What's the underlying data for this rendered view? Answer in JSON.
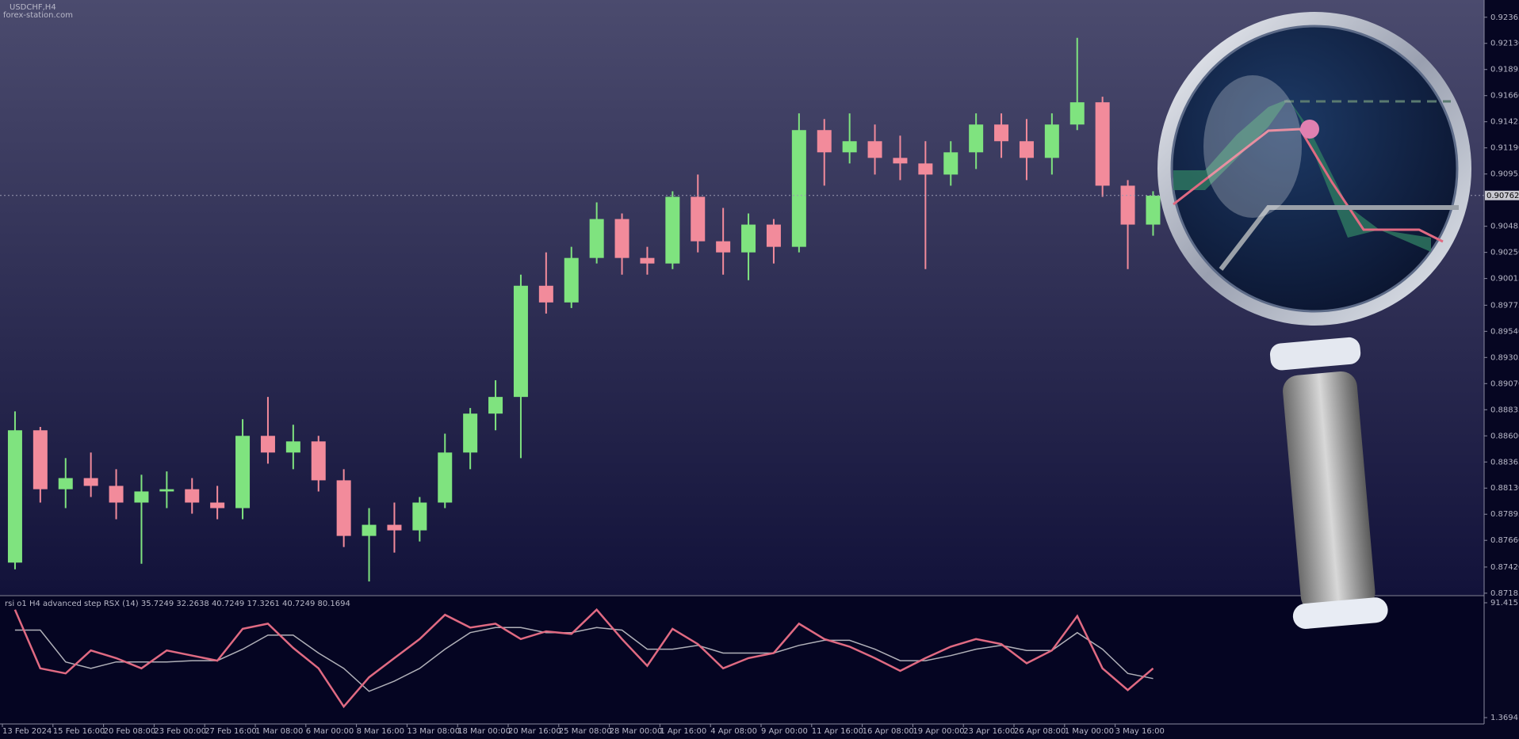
{
  "chart_data": [
    {
      "type": "candlestick",
      "title": "USDCHF,H4",
      "subtitle": "forex-station.com",
      "categories": [
        "13 Feb 2024",
        null,
        "15 Feb 16:00",
        null,
        "20 Feb 08:00",
        null,
        "23 Feb 00:00",
        null,
        "27 Feb 16:00",
        null,
        "1 Mar 08:00",
        null,
        "6 Mar 00:00",
        null,
        "8 Mar 16:00",
        null,
        "13 Mar 08:00",
        null,
        "18 Mar 00:00",
        null,
        "20 Mar 16:00",
        null,
        "25 Mar 08:00",
        null,
        "28 Mar 00:00",
        null,
        "1 Apr 16:00",
        null,
        "4 Apr 08:00",
        null,
        "9 Apr 00:00",
        null,
        "11 Apr 16:00",
        null,
        "16 Apr 08:00",
        null,
        "19 Apr 00:00",
        null,
        "23 Apr 16:00",
        null,
        "26 Apr 08:00",
        null,
        "1 May 00:00",
        null,
        "3 May 16:00",
        null
      ],
      "open": [
        0.8746,
        0.8865,
        0.8812,
        0.8822,
        0.8815,
        0.88,
        0.881,
        0.8812,
        0.88,
        0.8795,
        0.886,
        0.8845,
        0.8855,
        0.882,
        0.877,
        0.878,
        0.8775,
        0.88,
        0.8845,
        0.888,
        0.8895,
        0.8995,
        0.898,
        0.902,
        0.9055,
        0.902,
        0.9015,
        0.9075,
        0.9035,
        0.9025,
        0.905,
        0.903,
        0.9135,
        0.9115,
        0.9125,
        0.911,
        0.9105,
        0.9095,
        0.9115,
        0.914,
        0.9125,
        0.911,
        0.914,
        0.916,
        0.9085,
        0.905
      ],
      "high": [
        0.8882,
        0.8868,
        0.884,
        0.8845,
        0.883,
        0.8825,
        0.8828,
        0.8822,
        0.8815,
        0.8875,
        0.8895,
        0.887,
        0.886,
        0.883,
        0.8795,
        0.88,
        0.8805,
        0.8862,
        0.8885,
        0.891,
        0.9005,
        0.9025,
        0.903,
        0.907,
        0.906,
        0.903,
        0.908,
        0.9095,
        0.9065,
        0.906,
        0.9055,
        0.915,
        0.9145,
        0.915,
        0.914,
        0.913,
        0.9125,
        0.9125,
        0.915,
        0.915,
        0.9145,
        0.915,
        0.9218,
        0.9165,
        0.909,
        0.908
      ],
      "low": [
        0.874,
        0.88,
        0.8795,
        0.8805,
        0.8785,
        0.8745,
        0.8795,
        0.879,
        0.8785,
        0.8785,
        0.8835,
        0.883,
        0.881,
        0.876,
        0.8729,
        0.8755,
        0.8765,
        0.8795,
        0.883,
        0.8865,
        0.884,
        0.897,
        0.8975,
        0.9015,
        0.9005,
        0.9005,
        0.901,
        0.9025,
        0.9005,
        0.9,
        0.9015,
        0.9025,
        0.9085,
        0.9105,
        0.9095,
        0.909,
        0.901,
        0.9085,
        0.91,
        0.911,
        0.909,
        0.9095,
        0.9135,
        0.9075,
        0.901,
        0.904
      ],
      "close": [
        0.8865,
        0.8812,
        0.8822,
        0.8815,
        0.88,
        0.881,
        0.8812,
        0.88,
        0.8795,
        0.886,
        0.8845,
        0.8855,
        0.882,
        0.877,
        0.878,
        0.8775,
        0.88,
        0.8845,
        0.888,
        0.8895,
        0.8995,
        0.898,
        0.902,
        0.9055,
        0.902,
        0.9015,
        0.9075,
        0.9035,
        0.9025,
        0.905,
        0.903,
        0.9135,
        0.9115,
        0.9125,
        0.911,
        0.9105,
        0.9095,
        0.9115,
        0.914,
        0.9125,
        0.911,
        0.914,
        0.916,
        0.9085,
        0.905,
        0.9076
      ],
      "up_color": "#7fe37f",
      "down_color": "#f28b9b",
      "current_price": 0.90762,
      "ylim": [
        0.8717,
        0.9252
      ],
      "yticks": [
        {
          "value": 0.92365,
          "label": "0.92365"
        },
        {
          "value": 0.9213,
          "label": "0.92130"
        },
        {
          "value": 0.91895,
          "label": "0.91895"
        },
        {
          "value": 0.9166,
          "label": "0.91660"
        },
        {
          "value": 0.91425,
          "label": "0.91425"
        },
        {
          "value": 0.9119,
          "label": "0.91190"
        },
        {
          "value": 0.90955,
          "label": "0.90955"
        },
        {
          "value": 0.90485,
          "label": "0.90485"
        },
        {
          "value": 0.9025,
          "label": "0.90250"
        },
        {
          "value": 0.90015,
          "label": "0.90015"
        },
        {
          "value": 0.89775,
          "label": "0.89775"
        },
        {
          "value": 0.8954,
          "label": "0.89540"
        },
        {
          "value": 0.89305,
          "label": "0.89305"
        },
        {
          "value": 0.8907,
          "label": "0.89070"
        },
        {
          "value": 0.88835,
          "label": "0.88835"
        },
        {
          "value": 0.886,
          "label": "0.88600"
        },
        {
          "value": 0.88365,
          "label": "0.88365"
        },
        {
          "value": 0.8813,
          "label": "0.88130"
        },
        {
          "value": 0.87895,
          "label": "0.87895"
        },
        {
          "value": 0.8766,
          "label": "0.87660"
        },
        {
          "value": 0.8742,
          "label": "0.87420"
        },
        {
          "value": 0.87185,
          "label": "0.87185"
        }
      ]
    },
    {
      "type": "line",
      "title": "rsi o1 H4 advanced step RSX (14) 35.7249 32.2638 40.7249 17.3261 40.7249 80.1694",
      "series": [
        {
          "color": "#b0b0b8",
          "values": [
            70,
            70,
            45,
            40,
            45,
            45,
            45,
            46,
            46,
            55,
            66,
            66,
            52,
            40,
            22,
            30,
            40,
            55,
            68,
            72,
            72,
            68,
            68,
            72,
            70,
            55,
            55,
            58,
            52,
            52,
            52,
            58,
            62,
            62,
            55,
            46,
            46,
            50,
            55,
            58,
            54,
            54,
            68,
            55,
            36,
            32
          ]
        },
        {
          "color": "#e06a82",
          "values": [
            86,
            40,
            36,
            54,
            48,
            40,
            54,
            50,
            46,
            71,
            75,
            56,
            40,
            10,
            33,
            48,
            63,
            82,
            72,
            75,
            63,
            69,
            67,
            86,
            63,
            42,
            71,
            59,
            40,
            48,
            52,
            75,
            63,
            57,
            48,
            38,
            48,
            57,
            63,
            59,
            44,
            54,
            81,
            40,
            23,
            40
          ]
        }
      ],
      "ylim": [
        1.3694,
        91.415
      ],
      "yticks": [
        {
          "value": 91.415,
          "label": "91.415"
        },
        {
          "value": 1.3694,
          "label": "1.3694"
        }
      ]
    }
  ]
}
